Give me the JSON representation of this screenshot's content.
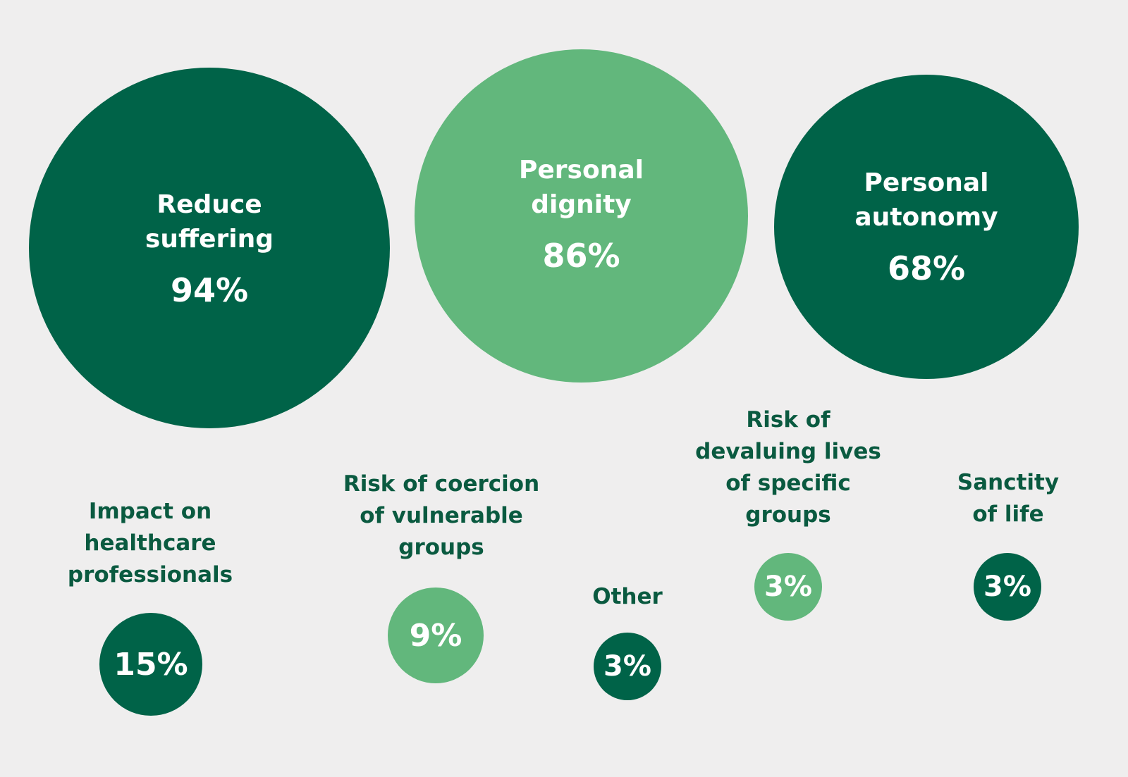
{
  "chart_data": {
    "type": "bubble",
    "colors": {
      "dark": "#006348",
      "light": "#62b77c",
      "background": "#efeeee",
      "label_text": "#0a5a40"
    },
    "items": [
      {
        "label": [
          "Reduce",
          "suffering"
        ],
        "value": "94%",
        "percent": 94,
        "color": "dark"
      },
      {
        "label": [
          "Personal",
          "dignity"
        ],
        "value": "86%",
        "percent": 86,
        "color": "light"
      },
      {
        "label": [
          "Personal",
          "autonomy"
        ],
        "value": "68%",
        "percent": 68,
        "color": "dark"
      },
      {
        "label": [
          "Impact on",
          "healthcare",
          "professionals"
        ],
        "value": "15%",
        "percent": 15,
        "color": "dark"
      },
      {
        "label": [
          "Risk of coercion",
          "of vulnerable",
          "groups"
        ],
        "value": "9%",
        "percent": 9,
        "color": "light"
      },
      {
        "label": [
          "Other"
        ],
        "value": "3%",
        "percent": 3,
        "color": "dark"
      },
      {
        "label": [
          "Risk of",
          "devaluing lives",
          "of specific",
          "groups"
        ],
        "value": "3%",
        "percent": 3,
        "color": "light"
      },
      {
        "label": [
          "Sanctity",
          "of life"
        ],
        "value": "3%",
        "percent": 3,
        "color": "dark"
      }
    ]
  }
}
